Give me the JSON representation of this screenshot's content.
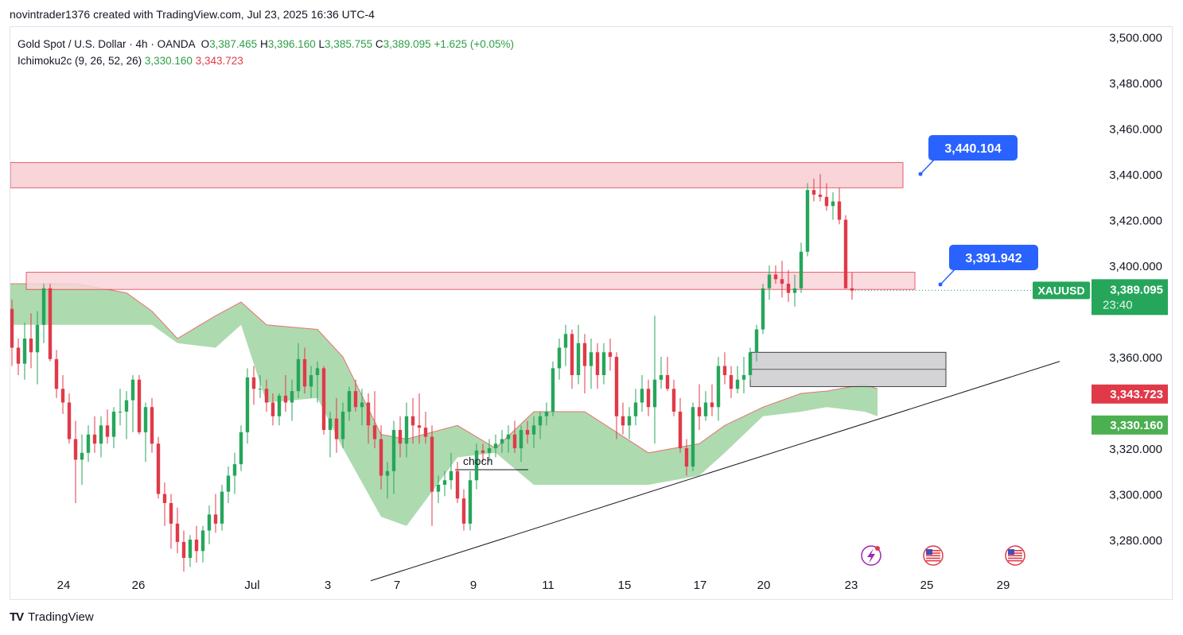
{
  "header": {
    "attribution": "novintrader1376 created with TradingView.com, Jul 23, 2025 16:36 UTC-4"
  },
  "legend": {
    "symbol": "Gold Spot / U.S. Dollar · 4h · OANDA",
    "o_label": "O",
    "o": "3,387.465",
    "h_label": "H",
    "h": "3,396.160",
    "l_label": "L",
    "l": "3,385.755",
    "c_label": "C",
    "c": "3,389.095",
    "change": "+1.625 (+0.05%)",
    "indicator": "Ichimoku2c (9, 26, 52, 26)",
    "ind_val1": "3,330.160",
    "ind_val2": "3,343.723"
  },
  "footer": {
    "brand": "TradingView"
  },
  "colors": {
    "up": "#26a65b",
    "down": "#e03a49",
    "cloud": "#a5d6a7",
    "zone": "#f9d5d9",
    "callout": "#2962ff",
    "price_tag": "#26a65b",
    "kijun_tag": "#e03a49",
    "tenkan_tag": "#4caf50"
  },
  "chart_data": {
    "type": "candlestick",
    "title": "Gold Spot / U.S. Dollar · 4h · OANDA",
    "symbol": "XAUUSD",
    "y_ticks": [
      "3,500.000",
      "3,480.000",
      "3,460.000",
      "3,440.000",
      "3,420.000",
      "3,400.000",
      "3,360.000",
      "3,320.000",
      "3,300.000",
      "3,280.000"
    ],
    "y_tick_values": [
      3500,
      3480,
      3460,
      3440,
      3420,
      3400,
      3360,
      3320,
      3300,
      3280
    ],
    "x_ticks": [
      "24",
      "26",
      "Jul",
      "3",
      "7",
      "9",
      "11",
      "15",
      "17",
      "20",
      "23",
      "25",
      "29"
    ],
    "x_tick_index": [
      5,
      17,
      38,
      50,
      61,
      73,
      85,
      97,
      109,
      119,
      133,
      145,
      157
    ],
    "ylim": [
      3270,
      3506
    ],
    "last_price": {
      "label": "XAUUSD",
      "value": "3,389.095",
      "countdown": "23:40"
    },
    "kijun_tag": "3,343.723",
    "tenkan_tag": "3,330.160",
    "callouts": [
      "3,440.104",
      "3,391.942"
    ],
    "annotation": "choch",
    "candles": [
      [
        3381,
        3385,
        3356,
        3364
      ],
      [
        3364,
        3368,
        3352,
        3357
      ],
      [
        3357,
        3375,
        3350,
        3368
      ],
      [
        3368,
        3379,
        3355,
        3362
      ],
      [
        3362,
        3380,
        3348,
        3374
      ],
      [
        3374,
        3392,
        3366,
        3390
      ],
      [
        3390,
        3392,
        3358,
        3359
      ],
      [
        3359,
        3363,
        3342,
        3346
      ],
      [
        3346,
        3352,
        3335,
        3340
      ],
      [
        3340,
        3344,
        3322,
        3324
      ],
      [
        3324,
        3332,
        3296,
        3315
      ],
      [
        3315,
        3326,
        3304,
        3318
      ],
      [
        3318,
        3330,
        3314,
        3326
      ],
      [
        3326,
        3334,
        3318,
        3322
      ],
      [
        3322,
        3334,
        3316,
        3330
      ],
      [
        3330,
        3337,
        3322,
        3325
      ],
      [
        3325,
        3338,
        3320,
        3336
      ],
      [
        3336,
        3346,
        3330,
        3336
      ],
      [
        3336,
        3345,
        3324,
        3341
      ],
      [
        3341,
        3352,
        3327,
        3350
      ],
      [
        3350,
        3352,
        3326,
        3327
      ],
      [
        3327,
        3340,
        3314,
        3338
      ],
      [
        3338,
        3342,
        3318,
        3322
      ],
      [
        3322,
        3325,
        3298,
        3300
      ],
      [
        3300,
        3305,
        3286,
        3296
      ],
      [
        3296,
        3300,
        3276,
        3287
      ],
      [
        3287,
        3294,
        3274,
        3279
      ],
      [
        3279,
        3284,
        3266,
        3272
      ],
      [
        3272,
        3282,
        3268,
        3280
      ],
      [
        3280,
        3286,
        3270,
        3275
      ],
      [
        3275,
        3286,
        3270,
        3284
      ],
      [
        3284,
        3295,
        3278,
        3291
      ],
      [
        3291,
        3300,
        3283,
        3287
      ],
      [
        3287,
        3304,
        3284,
        3301
      ],
      [
        3301,
        3312,
        3296,
        3308
      ],
      [
        3308,
        3318,
        3300,
        3313
      ],
      [
        3313,
        3330,
        3310,
        3327
      ],
      [
        3327,
        3355,
        3322,
        3351
      ],
      [
        3351,
        3356,
        3339,
        3346
      ],
      [
        3346,
        3352,
        3342,
        3346
      ],
      [
        3346,
        3350,
        3336,
        3340
      ],
      [
        3340,
        3344,
        3330,
        3334
      ],
      [
        3334,
        3344,
        3330,
        3343
      ],
      [
        3343,
        3352,
        3336,
        3340
      ],
      [
        3340,
        3350,
        3332,
        3345
      ],
      [
        3345,
        3366,
        3342,
        3359
      ],
      [
        3359,
        3364,
        3344,
        3347
      ],
      [
        3347,
        3356,
        3342,
        3352
      ],
      [
        3352,
        3358,
        3340,
        3355
      ],
      [
        3355,
        3356,
        3326,
        3328
      ],
      [
        3328,
        3336,
        3316,
        3333
      ],
      [
        3333,
        3342,
        3318,
        3324
      ],
      [
        3324,
        3340,
        3320,
        3336
      ],
      [
        3336,
        3347,
        3332,
        3345
      ],
      [
        3345,
        3350,
        3336,
        3338
      ],
      [
        3338,
        3346,
        3330,
        3340
      ],
      [
        3340,
        3344,
        3322,
        3330
      ],
      [
        3330,
        3345,
        3320,
        3324
      ],
      [
        3324,
        3330,
        3302,
        3308
      ],
      [
        3308,
        3314,
        3298,
        3310
      ],
      [
        3310,
        3332,
        3300,
        3328
      ],
      [
        3328,
        3334,
        3316,
        3322
      ],
      [
        3322,
        3340,
        3316,
        3334
      ],
      [
        3334,
        3342,
        3322,
        3330
      ],
      [
        3330,
        3344,
        3322,
        3329
      ],
      [
        3329,
        3336,
        3322,
        3325
      ],
      [
        3325,
        3330,
        3286,
        3301
      ],
      [
        3301,
        3308,
        3296,
        3304
      ],
      [
        3304,
        3310,
        3299,
        3306
      ],
      [
        3306,
        3318,
        3302,
        3310
      ],
      [
        3310,
        3314,
        3296,
        3298
      ],
      [
        3298,
        3302,
        3284,
        3287
      ],
      [
        3287,
        3310,
        3284,
        3306
      ],
      [
        3306,
        3322,
        3302,
        3319
      ],
      [
        3319,
        3322,
        3314,
        3318
      ],
      [
        3318,
        3324,
        3314,
        3320
      ],
      [
        3320,
        3326,
        3316,
        3322
      ],
      [
        3322,
        3328,
        3318,
        3324
      ],
      [
        3324,
        3330,
        3318,
        3326
      ],
      [
        3326,
        3332,
        3318,
        3320
      ],
      [
        3320,
        3330,
        3314,
        3328
      ],
      [
        3328,
        3332,
        3322,
        3326
      ],
      [
        3326,
        3334,
        3320,
        3330
      ],
      [
        3330,
        3336,
        3324,
        3334
      ],
      [
        3334,
        3340,
        3330,
        3336
      ],
      [
        3336,
        3358,
        3334,
        3355
      ],
      [
        3355,
        3368,
        3350,
        3364
      ],
      [
        3364,
        3374,
        3356,
        3370
      ],
      [
        3370,
        3372,
        3346,
        3352
      ],
      [
        3352,
        3374,
        3348,
        3366
      ],
      [
        3366,
        3370,
        3344,
        3356
      ],
      [
        3356,
        3368,
        3346,
        3362
      ],
      [
        3362,
        3366,
        3346,
        3352
      ],
      [
        3352,
        3366,
        3348,
        3362
      ],
      [
        3362,
        3368,
        3354,
        3360
      ],
      [
        3360,
        3362,
        3324,
        3334
      ],
      [
        3334,
        3340,
        3326,
        3330
      ],
      [
        3330,
        3338,
        3324,
        3334
      ],
      [
        3334,
        3346,
        3330,
        3340
      ],
      [
        3340,
        3352,
        3336,
        3346
      ],
      [
        3346,
        3350,
        3334,
        3338
      ],
      [
        3338,
        3378,
        3322,
        3350
      ],
      [
        3350,
        3360,
        3346,
        3352
      ],
      [
        3352,
        3360,
        3345,
        3346
      ],
      [
        3346,
        3350,
        3334,
        3336
      ],
      [
        3336,
        3342,
        3318,
        3320
      ],
      [
        3320,
        3324,
        3308,
        3312
      ],
      [
        3312,
        3340,
        3310,
        3338
      ],
      [
        3338,
        3348,
        3328,
        3334
      ],
      [
        3334,
        3345,
        3332,
        3340
      ],
      [
        3340,
        3348,
        3334,
        3338
      ],
      [
        3338,
        3360,
        3332,
        3356
      ],
      [
        3356,
        3362,
        3348,
        3352
      ],
      [
        3352,
        3356,
        3342,
        3346
      ],
      [
        3346,
        3356,
        3344,
        3350
      ],
      [
        3350,
        3360,
        3344,
        3352
      ],
      [
        3352,
        3364,
        3350,
        3362
      ],
      [
        3362,
        3374,
        3358,
        3372
      ],
      [
        3372,
        3392,
        3370,
        3390
      ],
      [
        3390,
        3400,
        3385,
        3396
      ],
      [
        3396,
        3400,
        3392,
        3394
      ],
      [
        3394,
        3402,
        3386,
        3392
      ],
      [
        3392,
        3398,
        3384,
        3388
      ],
      [
        3388,
        3396,
        3382,
        3390
      ],
      [
        3390,
        3410,
        3388,
        3406
      ],
      [
        3406,
        3436,
        3404,
        3433
      ],
      [
        3433,
        3438,
        3428,
        3431
      ],
      [
        3431,
        3440,
        3428,
        3430
      ],
      [
        3430,
        3436,
        3424,
        3426
      ],
      [
        3426,
        3432,
        3420,
        3428
      ],
      [
        3428,
        3434,
        3418,
        3420
      ],
      [
        3420,
        3422,
        3390,
        3390
      ],
      [
        3390,
        3397,
        3385,
        3389
      ]
    ],
    "zones": [
      {
        "from": 3445,
        "to": 3434
      },
      {
        "from": 3397,
        "to": 3389.5
      }
    ],
    "consolidation_box": {
      "from": 3362,
      "to": 3347
    },
    "trendline": {
      "from": [
        3262,
        "left"
      ],
      "to": [
        3358,
        "right"
      ]
    }
  }
}
